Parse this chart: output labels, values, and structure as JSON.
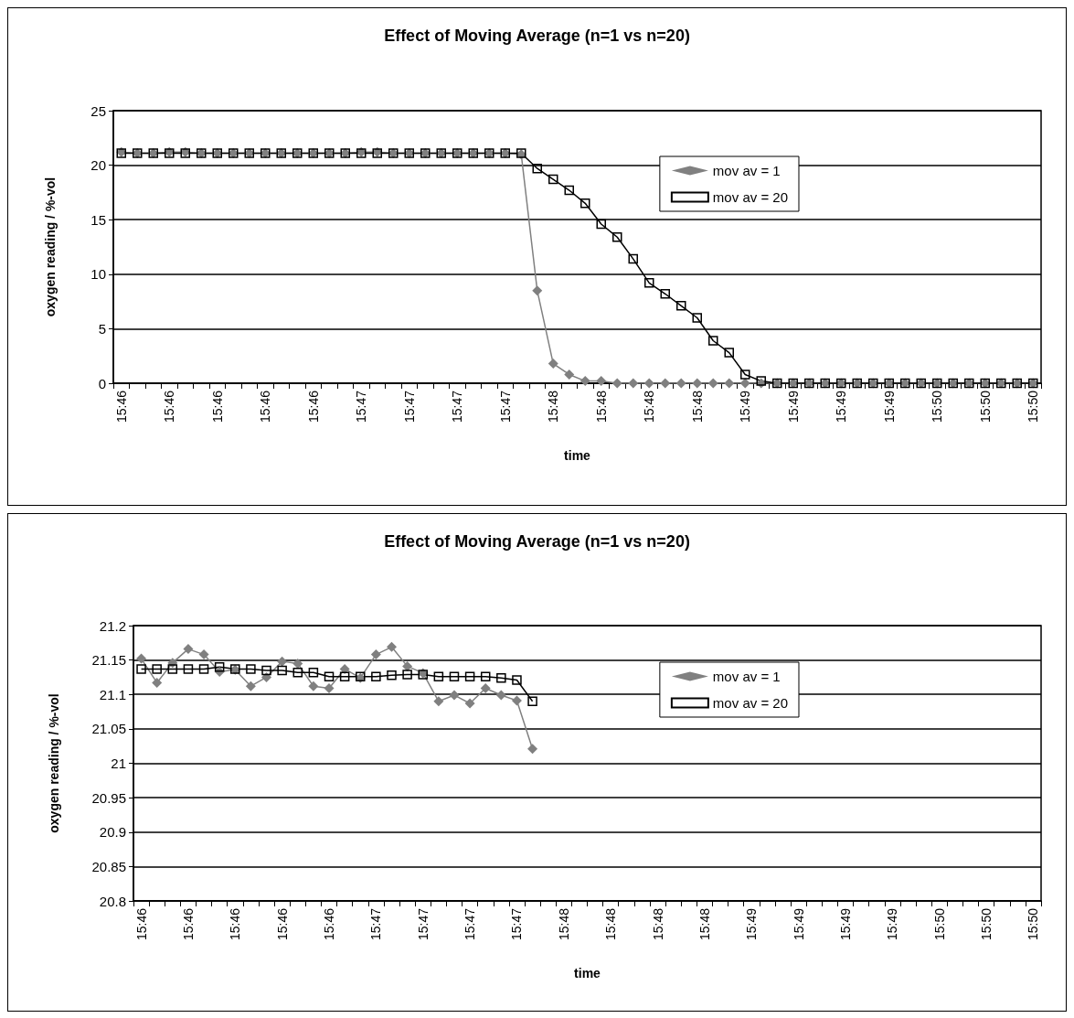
{
  "chart_data": [
    {
      "type": "line",
      "title": "Effect of Moving Average (n=1 vs n=20)",
      "xlabel": "time",
      "ylabel": "oxygen reading / %-vol",
      "categories": [
        "15:46",
        null,
        null,
        "15:46",
        null,
        null,
        "15:46",
        null,
        null,
        "15:46",
        null,
        null,
        "15:46",
        null,
        null,
        "15:47",
        null,
        null,
        "15:47",
        null,
        null,
        "15:47",
        null,
        null,
        "15:47",
        null,
        null,
        "15:48",
        null,
        null,
        "15:48",
        null,
        null,
        "15:48",
        null,
        null,
        "15:48",
        null,
        null,
        "15:49",
        null,
        null,
        "15:49",
        null,
        null,
        "15:49",
        null,
        null,
        "15:49",
        null,
        null,
        "15:50",
        null,
        null,
        "15:50",
        null,
        null,
        "15:50"
      ],
      "series": [
        {
          "name": "mov av = 1",
          "color": "#808080",
          "marker": "diamond",
          "values": [
            21.2,
            21.1,
            21.1,
            21.2,
            21.2,
            21.1,
            21.1,
            21.1,
            21.1,
            21.1,
            21.1,
            21.1,
            21.1,
            21.1,
            21.1,
            21.2,
            21.2,
            21.1,
            21.1,
            21.1,
            21.1,
            21.1,
            21.1,
            21.1,
            21.1,
            21.0,
            8.5,
            1.8,
            0.8,
            0.2,
            0.2,
            0,
            0,
            0,
            0,
            0,
            0,
            0,
            0,
            0,
            0,
            0,
            0,
            0,
            0,
            0,
            0,
            0,
            0,
            0,
            0,
            0,
            0,
            0,
            0,
            0,
            0,
            0
          ]
        },
        {
          "name": "mov av = 20",
          "color": "#000000",
          "marker": "square",
          "values": [
            21.1,
            21.1,
            21.1,
            21.1,
            21.1,
            21.1,
            21.1,
            21.1,
            21.1,
            21.1,
            21.1,
            21.1,
            21.1,
            21.1,
            21.1,
            21.1,
            21.1,
            21.1,
            21.1,
            21.1,
            21.1,
            21.1,
            21.1,
            21.1,
            21.1,
            21.1,
            19.7,
            18.7,
            17.7,
            16.5,
            14.6,
            13.4,
            11.4,
            9.2,
            8.2,
            7.1,
            6.0,
            3.9,
            2.8,
            0.8,
            0.2,
            0,
            0,
            0,
            0,
            0,
            0,
            0,
            0,
            0,
            0,
            0,
            0,
            0,
            0,
            0,
            0,
            0
          ]
        }
      ],
      "ylim": [
        0,
        25
      ],
      "yticks": [
        0,
        5,
        10,
        15,
        20,
        25
      ],
      "grid": "y",
      "legend": "top right"
    },
    {
      "type": "line",
      "title": "Effect of Moving Average (n=1 vs n=20)",
      "xlabel": "time",
      "ylabel": "oxygen reading / %-vol",
      "categories": [
        "15:46",
        null,
        null,
        "15:46",
        null,
        null,
        "15:46",
        null,
        null,
        "15:46",
        null,
        null,
        "15:46",
        null,
        null,
        "15:47",
        null,
        null,
        "15:47",
        null,
        null,
        "15:47",
        null,
        null,
        "15:47",
        null,
        null,
        "15:48",
        null,
        null,
        "15:48",
        null,
        null,
        "15:48",
        null,
        null,
        "15:48",
        null,
        null,
        "15:49",
        null,
        null,
        "15:49",
        null,
        null,
        "15:49",
        null,
        null,
        "15:49",
        null,
        null,
        "15:50",
        null,
        null,
        "15:50",
        null,
        null,
        "15:50"
      ],
      "series": [
        {
          "name": "mov av = 1",
          "color": "#808080",
          "marker": "diamond",
          "values": [
            21.152,
            21.117,
            21.146,
            21.166,
            21.158,
            21.133,
            21.136,
            21.112,
            21.125,
            21.148,
            21.145,
            21.112,
            21.109,
            21.137,
            21.124,
            21.158,
            21.169,
            21.141,
            21.131,
            21.09,
            21.099,
            21.087,
            21.109,
            21.099,
            21.091,
            21.021,
            null,
            null,
            null,
            null,
            null,
            null,
            null,
            null,
            null,
            null,
            null,
            null,
            null,
            null,
            null,
            null,
            null,
            null,
            null,
            null,
            null,
            null,
            null,
            null,
            null,
            null,
            null,
            null,
            null,
            null,
            null,
            null
          ]
        },
        {
          "name": "mov av = 20",
          "color": "#000000",
          "marker": "square",
          "values": [
            21.137,
            21.137,
            21.137,
            21.137,
            21.137,
            21.14,
            21.137,
            21.137,
            21.135,
            21.135,
            21.132,
            21.132,
            21.126,
            21.126,
            21.126,
            21.126,
            21.128,
            21.129,
            21.129,
            21.126,
            21.126,
            21.126,
            21.126,
            21.124,
            21.121,
            21.09,
            null,
            null,
            null,
            null,
            null,
            null,
            null,
            null,
            null,
            null,
            null,
            null,
            null,
            null,
            null,
            null,
            null,
            null,
            null,
            null,
            null,
            null,
            null,
            null,
            null,
            null,
            null,
            null,
            null,
            null,
            null,
            null
          ]
        }
      ],
      "ylim": [
        20.8,
        21.2
      ],
      "yticks": [
        20.8,
        20.85,
        20.9,
        20.95,
        21,
        21.05,
        21.1,
        21.15,
        21.2
      ],
      "grid": "y",
      "legend": "top right"
    }
  ]
}
